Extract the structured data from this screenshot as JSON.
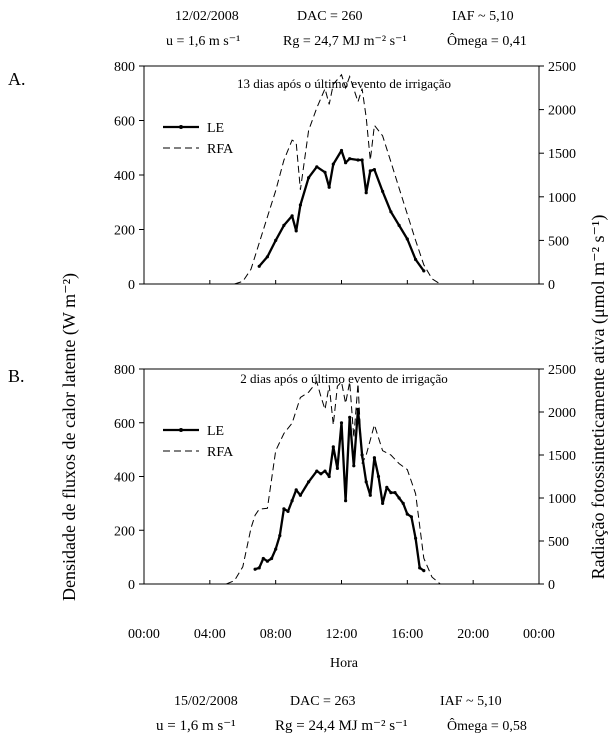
{
  "header_top": {
    "date": "12/02/2008",
    "dac": "DAC = 260",
    "iaf": "IAF ~ 5,10",
    "wind": "u = 1,6 m s⁻¹",
    "rg": "Rg = 24,7 MJ m⁻² s⁻¹",
    "omega": "Ômega = 0,41"
  },
  "header_bottom": {
    "date": "15/02/2008",
    "dac": "DAC = 263",
    "iaf": "IAF ~ 5,10",
    "wind": "u = 1,6 m s⁻¹",
    "rg": "Rg = 24,4 MJ m⁻² s⁻¹",
    "omega": "Ômega = 0,58"
  },
  "y_label_left": "Densidade de fluxos de calor latente (W m⁻²)",
  "y_label_right": "Radiação fotossinteticamente ativa (μmol m⁻² s⁻¹)",
  "x_label": "Hora",
  "x_tick_labels": [
    "00:00",
    "04:00",
    "08:00",
    "12:00",
    "16:00",
    "20:00",
    "00:00"
  ],
  "chart_data": [
    {
      "type": "line",
      "panel_label": "A.",
      "title": "13 dias após o último evento de irrigação",
      "xlim": [
        0,
        24
      ],
      "ylim_left": [
        0,
        800
      ],
      "ylim_right": [
        0,
        2500
      ],
      "y_ticks_left": [
        0,
        200,
        400,
        600,
        800
      ],
      "y_ticks_right": [
        0,
        500,
        1000,
        1500,
        2000,
        2500
      ],
      "legend": {
        "position": "top-left",
        "entries": [
          "LE",
          "RFA"
        ]
      },
      "series": [
        {
          "name": "LE",
          "axis": "left",
          "style": "solid-thick",
          "x": [
            7.0,
            7.5,
            8.0,
            8.5,
            9.0,
            9.25,
            9.5,
            10.0,
            10.5,
            11.0,
            11.25,
            11.5,
            12.0,
            12.25,
            12.5,
            13.0,
            13.25,
            13.5,
            13.75,
            14.0,
            14.5,
            15.0,
            15.5,
            16.0,
            16.5,
            17.0
          ],
          "y": [
            65,
            100,
            160,
            215,
            250,
            195,
            290,
            390,
            430,
            410,
            355,
            440,
            490,
            445,
            460,
            455,
            455,
            335,
            415,
            420,
            340,
            265,
            215,
            165,
            90,
            48
          ]
        },
        {
          "name": "RFA",
          "axis": "right",
          "style": "dashed",
          "x": [
            5.5,
            6.0,
            6.5,
            7.0,
            7.5,
            8.0,
            8.5,
            9.0,
            9.25,
            9.5,
            10.0,
            10.5,
            11.0,
            11.25,
            11.5,
            12.0,
            12.25,
            12.5,
            13.0,
            13.25,
            13.5,
            13.75,
            14.0,
            14.5,
            15.0,
            15.5,
            16.0,
            16.5,
            17.0,
            17.5,
            18.0
          ],
          "y": [
            0,
            30,
            170,
            470,
            770,
            1070,
            1420,
            1650,
            1620,
            1080,
            1760,
            2020,
            2240,
            2060,
            2290,
            2400,
            2250,
            2380,
            2090,
            2240,
            1910,
            1420,
            1820,
            1700,
            1400,
            1100,
            800,
            500,
            220,
            60,
            0
          ]
        }
      ]
    },
    {
      "type": "line",
      "panel_label": "B.",
      "title": "2 dias após o último evento de irrigação",
      "xlim": [
        0,
        24
      ],
      "ylim_left": [
        0,
        800
      ],
      "ylim_right": [
        0,
        2500
      ],
      "y_ticks_left": [
        0,
        200,
        400,
        600,
        800
      ],
      "y_ticks_right": [
        0,
        500,
        1000,
        1500,
        2000,
        2500
      ],
      "legend": {
        "position": "top-left",
        "entries": [
          "LE",
          "RFA"
        ]
      },
      "series": [
        {
          "name": "LE",
          "axis": "left",
          "style": "solid-thick",
          "x": [
            6.75,
            7.0,
            7.25,
            7.5,
            7.75,
            8.0,
            8.25,
            8.5,
            8.75,
            9.0,
            9.25,
            9.5,
            10.0,
            10.5,
            10.75,
            11.0,
            11.25,
            11.5,
            11.75,
            12.0,
            12.25,
            12.5,
            12.75,
            13.0,
            13.25,
            13.5,
            13.75,
            14.0,
            14.25,
            14.5,
            14.75,
            15.0,
            15.25,
            15.5,
            15.75,
            16.0,
            16.25,
            16.5,
            16.75,
            17.0
          ],
          "y": [
            55,
            60,
            95,
            85,
            95,
            130,
            180,
            280,
            270,
            310,
            350,
            330,
            380,
            420,
            410,
            420,
            400,
            510,
            430,
            600,
            310,
            620,
            440,
            650,
            480,
            380,
            330,
            470,
            400,
            300,
            360,
            340,
            340,
            320,
            300,
            260,
            250,
            170,
            60,
            50
          ]
        },
        {
          "name": "RFA",
          "axis": "right",
          "style": "dashed",
          "x": [
            5.0,
            5.5,
            6.0,
            6.5,
            6.75,
            7.0,
            7.5,
            8.0,
            8.5,
            9.0,
            9.5,
            10.0,
            10.5,
            10.75,
            11.0,
            11.25,
            11.5,
            11.75,
            12.0,
            12.25,
            12.5,
            12.75,
            13.0,
            13.25,
            13.5,
            14.0,
            14.5,
            15.0,
            15.5,
            16.0,
            16.5,
            17.0,
            17.5,
            18.0
          ],
          "y": [
            0,
            40,
            200,
            650,
            800,
            870,
            880,
            1550,
            1750,
            1870,
            2170,
            2230,
            2350,
            2180,
            2030,
            2310,
            1850,
            2300,
            2350,
            2100,
            2350,
            1700,
            2330,
            1400,
            1500,
            1850,
            1550,
            1500,
            1400,
            1330,
            1050,
            300,
            80,
            0
          ]
        }
      ]
    }
  ]
}
